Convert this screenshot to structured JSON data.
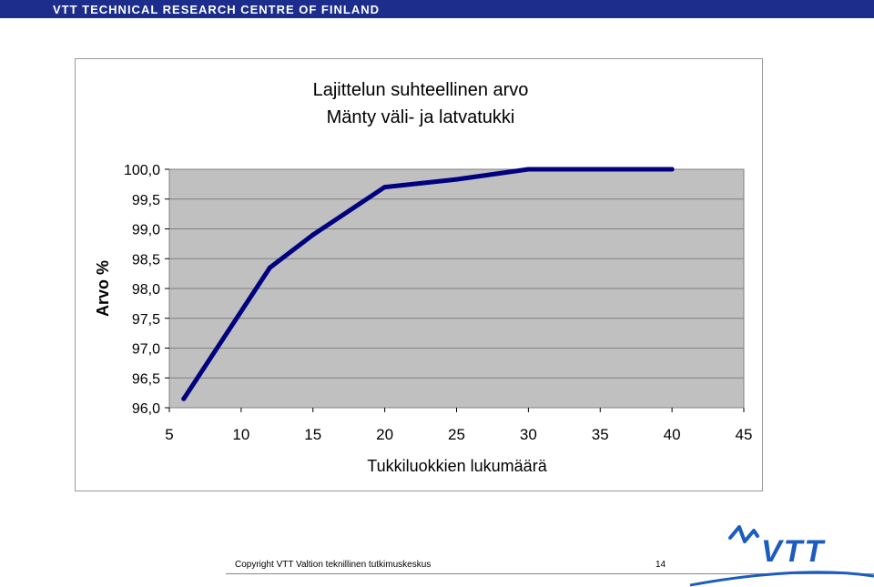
{
  "header": {
    "org_name": "VTT TECHNICAL RESEARCH CENTRE OF FINLAND"
  },
  "footer": {
    "copyright": "Copyright VTT Valtion teknillinen tutkimuskeskus",
    "page_number": "14"
  },
  "logo": {
    "text": "VTT"
  },
  "colors": {
    "header_bar": "#1c2d8c",
    "plot_background": "#c0c0c0",
    "series_line": "#000080",
    "logo_blue": "#1c5cbf"
  },
  "chart_data": {
    "type": "line",
    "title": "Lajittelun suhteellinen arvo",
    "subtitle": "Mänty väli- ja latvatukki",
    "xlabel": "Tukkiluokkien lukumäärä",
    "ylabel": "Arvo %",
    "xlim": [
      5,
      45
    ],
    "ylim": [
      96.0,
      100.0
    ],
    "x_ticks": [
      "5",
      "10",
      "15",
      "20",
      "25",
      "30",
      "35",
      "40",
      "45"
    ],
    "y_ticks": [
      "96,0",
      "96,5",
      "97,0",
      "97,5",
      "98,0",
      "98,5",
      "99,0",
      "99,5",
      "100,0"
    ],
    "grid": "horizontal",
    "legend": "none",
    "x": [
      6,
      12,
      15,
      20,
      25,
      30,
      40
    ],
    "y": [
      96.15,
      98.35,
      98.9,
      99.7,
      99.83,
      100.0,
      100.0
    ]
  }
}
